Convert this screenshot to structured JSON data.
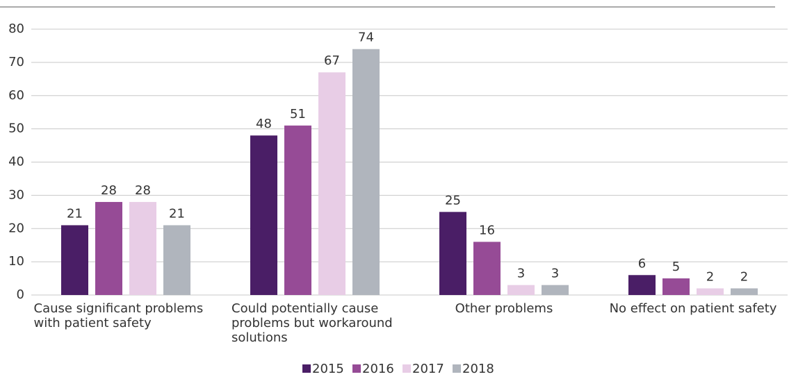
{
  "chart_data": {
    "type": "bar",
    "categories": [
      "Cause significant problems with patient safety",
      "Could potentially cause problems but workaround solutions",
      "Other problems",
      "No effect on patient safety"
    ],
    "series": [
      {
        "name": "2015",
        "color": "#4a1e66",
        "values": [
          21,
          48,
          25,
          6
        ]
      },
      {
        "name": "2016",
        "color": "#964b96",
        "values": [
          28,
          51,
          16,
          5
        ]
      },
      {
        "name": "2017",
        "color": "#e8cde6",
        "values": [
          28,
          67,
          3,
          2
        ]
      },
      {
        "name": "2018",
        "color": "#b0b5bd",
        "values": [
          21,
          74,
          3,
          2
        ]
      }
    ],
    "ylim": [
      0,
      80
    ],
    "yticks": [
      0,
      10,
      20,
      30,
      40,
      50,
      60,
      70,
      80
    ],
    "grid": true,
    "legend": "bottom"
  }
}
